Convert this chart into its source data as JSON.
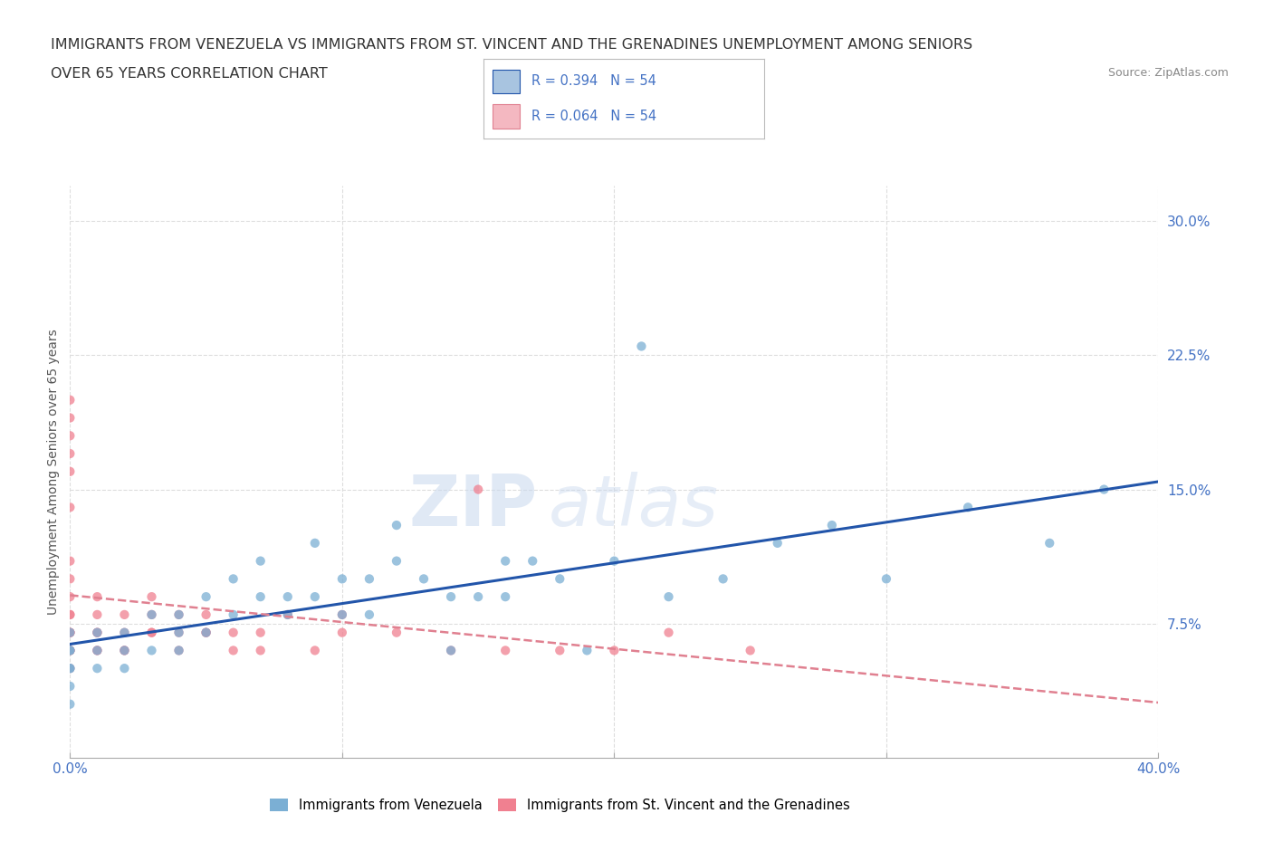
{
  "title_line1": "IMMIGRANTS FROM VENEZUELA VS IMMIGRANTS FROM ST. VINCENT AND THE GRENADINES UNEMPLOYMENT AMONG SENIORS",
  "title_line2": "OVER 65 YEARS CORRELATION CHART",
  "source_text": "Source: ZipAtlas.com",
  "ylabel": "Unemployment Among Seniors over 65 years",
  "xlim": [
    0.0,
    0.4
  ],
  "ylim": [
    0.0,
    0.32
  ],
  "xticks": [
    0.0,
    0.1,
    0.2,
    0.3,
    0.4
  ],
  "xticklabels": [
    "0.0%",
    "",
    "",
    "",
    "40.0%"
  ],
  "yticks": [
    0.075,
    0.15,
    0.225,
    0.3
  ],
  "yticklabels": [
    "7.5%",
    "15.0%",
    "22.5%",
    "30.0%"
  ],
  "watermark_zip": "ZIP",
  "watermark_atlas": "atlas",
  "legend_color1": "#a8c4e0",
  "legend_color2": "#f4b8c1",
  "color_venezuela": "#7bafd4",
  "color_stv": "#f08090",
  "trend_color_venezuela": "#2255aa",
  "trend_color_stv": "#e08090",
  "background_color": "#ffffff",
  "grid_color": "#dddddd",
  "tick_color": "#4472c4",
  "title_fontsize": 11.5,
  "tick_fontsize": 11,
  "venezuela_x": [
    0.0,
    0.0,
    0.0,
    0.0,
    0.0,
    0.0,
    0.0,
    0.01,
    0.01,
    0.01,
    0.02,
    0.02,
    0.02,
    0.03,
    0.03,
    0.04,
    0.04,
    0.04,
    0.05,
    0.05,
    0.06,
    0.06,
    0.07,
    0.07,
    0.08,
    0.08,
    0.09,
    0.1,
    0.1,
    0.11,
    0.11,
    0.12,
    0.13,
    0.14,
    0.14,
    0.15,
    0.16,
    0.17,
    0.18,
    0.19,
    0.2,
    0.21,
    0.22,
    0.24,
    0.26,
    0.28,
    0.3,
    0.33,
    0.36,
    0.38,
    0.09,
    0.12,
    0.16
  ],
  "venezuela_y": [
    0.05,
    0.06,
    0.05,
    0.07,
    0.06,
    0.04,
    0.03,
    0.06,
    0.05,
    0.07,
    0.06,
    0.07,
    0.05,
    0.06,
    0.08,
    0.07,
    0.06,
    0.08,
    0.07,
    0.09,
    0.08,
    0.1,
    0.09,
    0.11,
    0.09,
    0.08,
    0.09,
    0.08,
    0.1,
    0.1,
    0.08,
    0.11,
    0.1,
    0.09,
    0.06,
    0.09,
    0.09,
    0.11,
    0.1,
    0.06,
    0.11,
    0.23,
    0.09,
    0.1,
    0.12,
    0.13,
    0.1,
    0.14,
    0.12,
    0.15,
    0.12,
    0.13,
    0.11
  ],
  "stv_x": [
    0.0,
    0.0,
    0.0,
    0.0,
    0.0,
    0.0,
    0.0,
    0.0,
    0.0,
    0.0,
    0.0,
    0.0,
    0.0,
    0.0,
    0.0,
    0.0,
    0.0,
    0.0,
    0.01,
    0.01,
    0.01,
    0.01,
    0.01,
    0.02,
    0.02,
    0.02,
    0.03,
    0.03,
    0.03,
    0.04,
    0.04,
    0.04,
    0.05,
    0.05,
    0.06,
    0.06,
    0.07,
    0.07,
    0.08,
    0.09,
    0.1,
    0.1,
    0.12,
    0.14,
    0.15,
    0.16,
    0.18,
    0.2,
    0.22,
    0.25,
    0.01,
    0.02,
    0.03,
    0.05
  ],
  "stv_y": [
    0.06,
    0.07,
    0.05,
    0.06,
    0.07,
    0.08,
    0.14,
    0.17,
    0.18,
    0.19,
    0.2,
    0.16,
    0.1,
    0.09,
    0.11,
    0.06,
    0.07,
    0.08,
    0.06,
    0.07,
    0.08,
    0.06,
    0.09,
    0.07,
    0.08,
    0.06,
    0.07,
    0.08,
    0.09,
    0.07,
    0.08,
    0.06,
    0.07,
    0.08,
    0.06,
    0.07,
    0.07,
    0.06,
    0.08,
    0.06,
    0.07,
    0.08,
    0.07,
    0.06,
    0.15,
    0.06,
    0.06,
    0.06,
    0.07,
    0.06,
    0.07,
    0.06,
    0.07,
    0.07
  ]
}
